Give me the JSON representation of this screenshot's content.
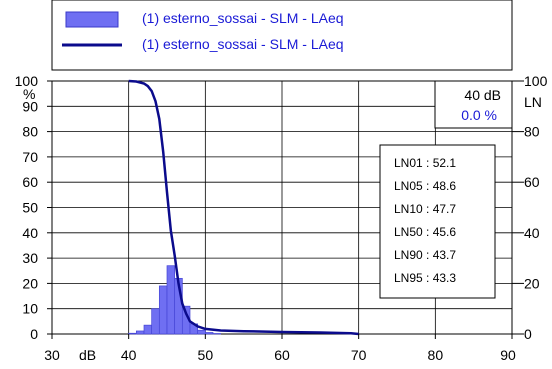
{
  "chart_data": {
    "type": "bar",
    "xlim": [
      30,
      90
    ],
    "ylim": [
      0,
      100
    ],
    "y_ticks": [
      0,
      10,
      20,
      30,
      40,
      50,
      60,
      70,
      80,
      90,
      100
    ],
    "y_tick_labels": [
      "0",
      "10",
      "20",
      "30",
      "40",
      "50",
      "60",
      "70",
      "80",
      "90",
      "100"
    ],
    "x_ticks": [
      30,
      40,
      50,
      60,
      70,
      80,
      90
    ],
    "x_tick_labels": [
      "30",
      "40",
      "50",
      "60",
      "70",
      "80",
      "90"
    ],
    "right_ticks": [
      0,
      20,
      40,
      60,
      80,
      100
    ],
    "right_tick_labels": [
      "0",
      "20",
      "40",
      "60",
      "80",
      "100"
    ],
    "x_unit_label": "dB",
    "y_unit_label": "%",
    "right_axis_label": "LN",
    "grid": true,
    "series": [
      {
        "name": "(1) esterno_sossai - SLM - LAeq",
        "type": "histogram",
        "color": "#6f6ff2",
        "bin_width": 1,
        "x": [
          40,
          41,
          42,
          43,
          44,
          45,
          46,
          47,
          48,
          49,
          50,
          51
        ],
        "values": [
          0.3,
          1.2,
          3.5,
          10,
          19,
          27,
          22,
          11,
          4,
          1.5,
          0.6,
          0.2
        ]
      },
      {
        "name": "(1) esterno_sossai - SLM - LAeq",
        "type": "line",
        "color": "#0b0b8c",
        "x": [
          40,
          41,
          42,
          42.5,
          43,
          43.5,
          44,
          44.5,
          45,
          45.5,
          46,
          46.5,
          47,
          47.5,
          48,
          49,
          50,
          52,
          55,
          60,
          65,
          69,
          70
        ],
        "values": [
          100,
          99.8,
          99,
          98,
          96,
          92,
          85,
          72,
          56,
          41,
          31,
          20,
          12,
          8,
          5,
          3,
          2,
          1.4,
          1.1,
          0.8,
          0.6,
          0.3,
          0
        ]
      }
    ],
    "cursor_box": {
      "level": "40 dB",
      "percent": "0.0 %"
    },
    "ln_values": [
      "LN01 : 52.1",
      "LN05 : 48.6",
      "LN10 : 47.7",
      "LN50 : 45.6",
      "LN90 : 43.7",
      "LN95 : 43.3"
    ],
    "legend_placement": "top"
  }
}
